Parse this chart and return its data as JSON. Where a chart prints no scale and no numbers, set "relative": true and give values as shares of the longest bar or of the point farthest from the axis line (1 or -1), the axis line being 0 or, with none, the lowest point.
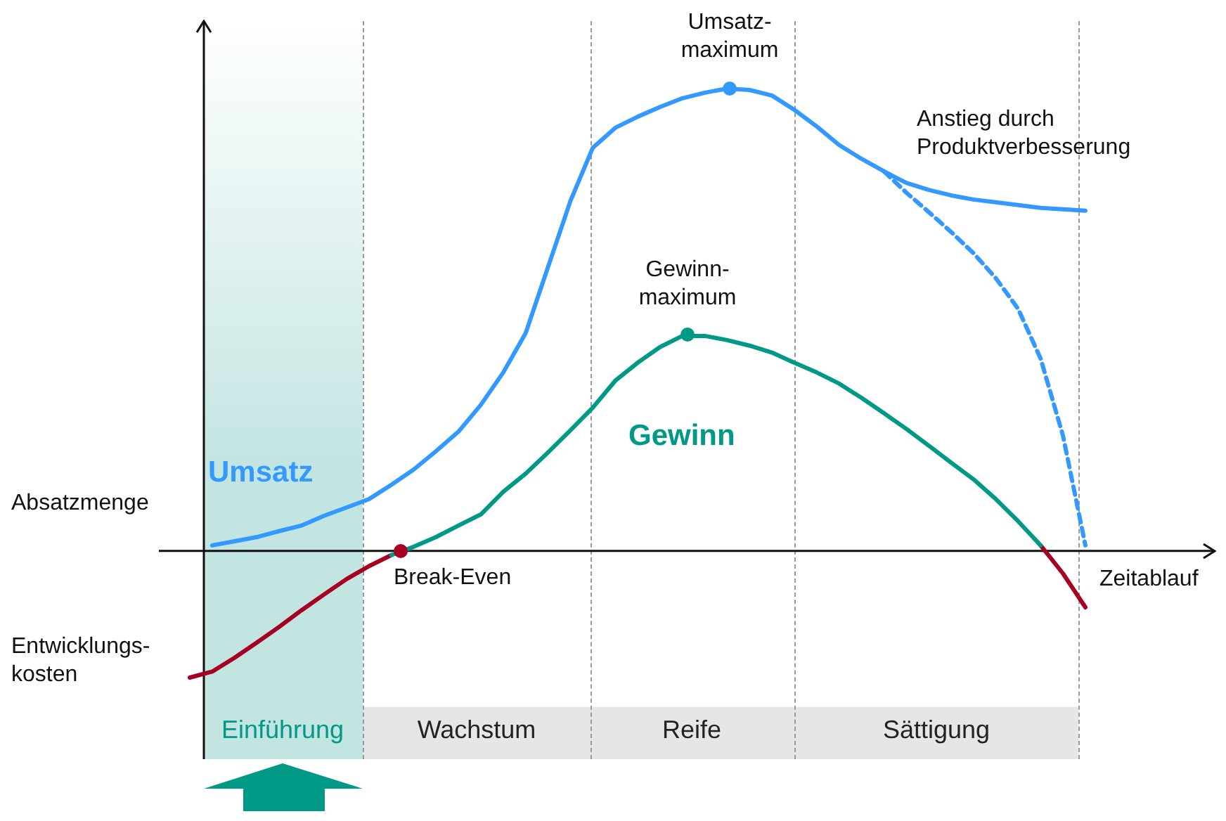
{
  "chart_data": {
    "type": "line",
    "relative": true,
    "ylabel": "Absatzmenge",
    "xlabel": "Zeitablauf",
    "legend": false,
    "categories": [
      null,
      null,
      null,
      null,
      null,
      null,
      null,
      null,
      null,
      null,
      null,
      null,
      null,
      null,
      null,
      null,
      null,
      null,
      null,
      null,
      null,
      null,
      null,
      null,
      null,
      null,
      null,
      null,
      null,
      null,
      null,
      null,
      null,
      null,
      null,
      null,
      null,
      null,
      null,
      null,
      null
    ],
    "series": [
      {
        "name": "Umsatz",
        "color": "#3399ff",
        "values": [
          null,
          0.012,
          0.021,
          0.03,
          0.043,
          0.055,
          0.076,
          0.094,
          0.112,
          0.143,
          0.176,
          0.216,
          0.258,
          0.316,
          0.386,
          0.471,
          0.614,
          0.757,
          0.872,
          0.915,
          0.939,
          0.96,
          0.979,
          0.991,
          1,
          0.997,
          0.985,
          0.954,
          0.918,
          0.878,
          0.848,
          0.821,
          0.796,
          0.781,
          0.769,
          0.76,
          0.754,
          0.748,
          0.742,
          0.739,
          0.736
        ]
      },
      {
        "color": "#3399ff",
        "line_style": "dashed",
        "values": [
          null,
          null,
          null,
          null,
          null,
          null,
          null,
          null,
          null,
          null,
          null,
          null,
          null,
          null,
          null,
          null,
          null,
          null,
          null,
          null,
          null,
          null,
          null,
          null,
          null,
          null,
          null,
          null,
          null,
          null,
          null,
          0.821,
          0.775,
          0.733,
          0.69,
          0.644,
          0.59,
          0.523,
          0.416,
          0.249,
          0.012
        ]
      },
      {
        "name": "Gewinn",
        "color": "#009985",
        "values": [
          null,
          null,
          null,
          null,
          null,
          null,
          null,
          null,
          null,
          -0.009,
          0.009,
          0.03,
          0.055,
          0.079,
          0.128,
          0.167,
          0.213,
          0.261,
          0.31,
          0.368,
          0.407,
          0.441,
          0.465,
          0.465,
          0.456,
          0.444,
          0.429,
          0.407,
          0.386,
          0.362,
          0.331,
          0.298,
          0.264,
          0.228,
          0.191,
          0.155,
          0.112,
          0.064,
          0.012,
          null,
          null
        ]
      },
      {
        "color": "#a50021",
        "values": [
          -0.274,
          -0.261,
          -0.231,
          -0.198,
          -0.164,
          -0.128,
          -0.094,
          -0.061,
          -0.033,
          -0.009,
          null,
          null,
          null,
          null,
          null,
          null,
          null,
          null,
          null,
          null,
          null,
          null,
          null,
          null,
          null,
          null,
          null,
          null,
          null,
          null,
          null,
          null,
          null,
          null,
          null,
          null,
          null,
          null,
          0.012,
          -0.049,
          -0.122
        ]
      }
    ],
    "annotations": [
      "Umsatz-\nmaximum",
      "Gewinn-\nmaximum",
      "Break-Even",
      "Anstieg durch\nProduktverbesserung",
      "Entwicklungs-\nkosten",
      "Einführung",
      "Wachstum",
      "Reife",
      "Sättigung"
    ]
  }
}
